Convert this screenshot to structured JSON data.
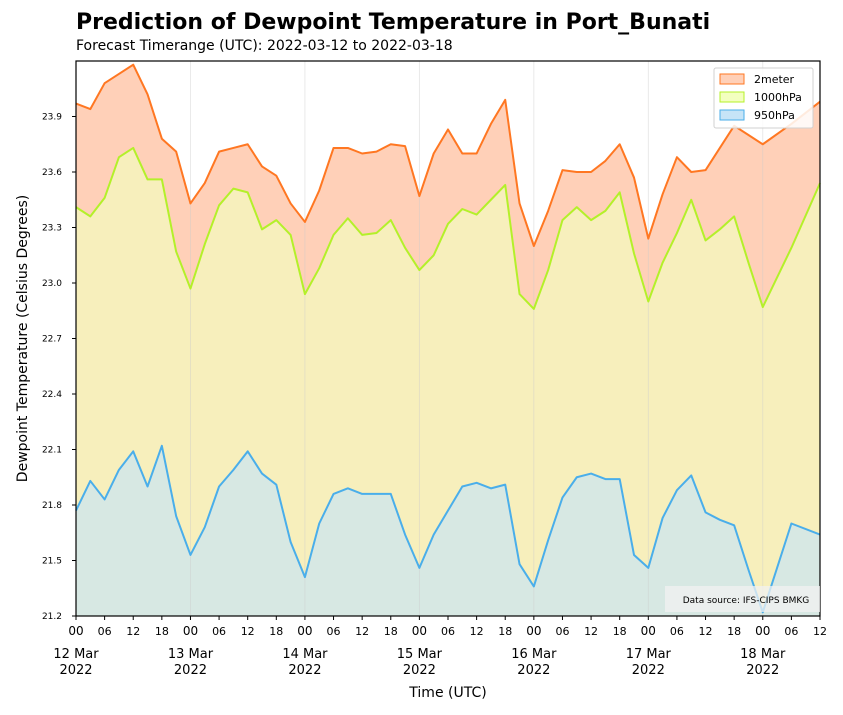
{
  "chart_data": {
    "type": "area",
    "title": "Prediction of Dewpoint Temperature in Port_Bunati",
    "subtitle": "Forecast Timerange (UTC): 2022-03-12 to 2022-03-18",
    "xlabel": "Time (UTC)",
    "ylabel": "Dewpoint Temperature (Celsius Degrees)",
    "ylim": [
      21.2,
      24.2
    ],
    "y_ticks": [
      "21.2",
      "21.5",
      "21.8",
      "22.1",
      "22.4",
      "22.7",
      "23.0",
      "23.3",
      "23.6",
      "23.9"
    ],
    "x_hour_ticks": [
      "00",
      "06",
      "12",
      "18",
      "00",
      "06",
      "12",
      "18",
      "00",
      "06",
      "12",
      "18",
      "00",
      "06",
      "12",
      "18",
      "00",
      "06",
      "12",
      "18",
      "00",
      "06",
      "12",
      "18",
      "00",
      "06",
      "12"
    ],
    "x_day_ticks": [
      {
        "day": "12 Mar",
        "year": "2022"
      },
      {
        "day": "13 Mar",
        "year": "2022"
      },
      {
        "day": "14 Mar",
        "year": "2022"
      },
      {
        "day": "15 Mar",
        "year": "2022"
      },
      {
        "day": "16 Mar",
        "year": "2022"
      },
      {
        "day": "17 Mar",
        "year": "2022"
      },
      {
        "day": "18 Mar",
        "year": "2022"
      }
    ],
    "x_hours": [
      0,
      3,
      6,
      9,
      12,
      15,
      18,
      21,
      24,
      27,
      30,
      33,
      36,
      39,
      42,
      45,
      48,
      51,
      54,
      57,
      60,
      63,
      66,
      69,
      72,
      75,
      78,
      81,
      84,
      87,
      90,
      93,
      96,
      99,
      102,
      105,
      108,
      111,
      114,
      117,
      120,
      123,
      126,
      129,
      132,
      135,
      138,
      141,
      144,
      150,
      156
    ],
    "grid": "vertical at day boundaries",
    "legend_position": "top-right",
    "annotation": "Data source: IFS-CIPS BMKG",
    "series": [
      {
        "name": "2meter",
        "color": "#ff7722",
        "fill": "#ffd0b8",
        "values": [
          23.97,
          23.94,
          24.08,
          24.13,
          24.18,
          24.02,
          23.78,
          23.71,
          23.43,
          23.54,
          23.71,
          23.73,
          23.75,
          23.63,
          23.58,
          23.43,
          23.33,
          23.5,
          23.73,
          23.73,
          23.7,
          23.71,
          23.75,
          23.74,
          23.47,
          23.7,
          23.83,
          23.7,
          23.7,
          23.86,
          23.99,
          23.43,
          23.2,
          23.39,
          23.61,
          23.6,
          23.6,
          23.66,
          23.75,
          23.57,
          23.24,
          23.48,
          23.68,
          23.6,
          23.61,
          23.73,
          23.85,
          23.8,
          23.75,
          23.86,
          23.98
        ]
      },
      {
        "name": "1000hPa",
        "color": "#b4f02a",
        "fill": "#f3ffbf",
        "values": [
          23.41,
          23.36,
          23.46,
          23.68,
          23.73,
          23.56,
          23.56,
          23.17,
          22.97,
          23.21,
          23.42,
          23.51,
          23.49,
          23.29,
          23.34,
          23.26,
          22.94,
          23.08,
          23.26,
          23.35,
          23.26,
          23.27,
          23.34,
          23.19,
          23.07,
          23.15,
          23.32,
          23.4,
          23.37,
          23.45,
          23.53,
          22.94,
          22.86,
          23.07,
          23.34,
          23.41,
          23.34,
          23.39,
          23.49,
          23.16,
          22.9,
          23.11,
          23.27,
          23.45,
          23.23,
          23.29,
          23.36,
          23.11,
          22.87,
          23.19,
          23.54
        ]
      },
      {
        "name": "950hPa",
        "color": "#4aaeea",
        "fill": "#c6e4f7",
        "values": [
          21.77,
          21.93,
          21.83,
          21.99,
          22.09,
          21.9,
          22.12,
          21.74,
          21.53,
          21.68,
          21.9,
          21.99,
          22.09,
          21.97,
          21.91,
          21.6,
          21.41,
          21.7,
          21.86,
          21.89,
          21.86,
          21.86,
          21.86,
          21.64,
          21.46,
          21.64,
          21.77,
          21.9,
          21.92,
          21.89,
          21.91,
          21.48,
          21.36,
          21.61,
          21.84,
          21.95,
          21.97,
          21.94,
          21.94,
          21.53,
          21.46,
          21.73,
          21.88,
          21.96,
          21.76,
          21.72,
          21.69,
          21.45,
          21.22,
          21.7,
          21.64
        ]
      }
    ]
  }
}
